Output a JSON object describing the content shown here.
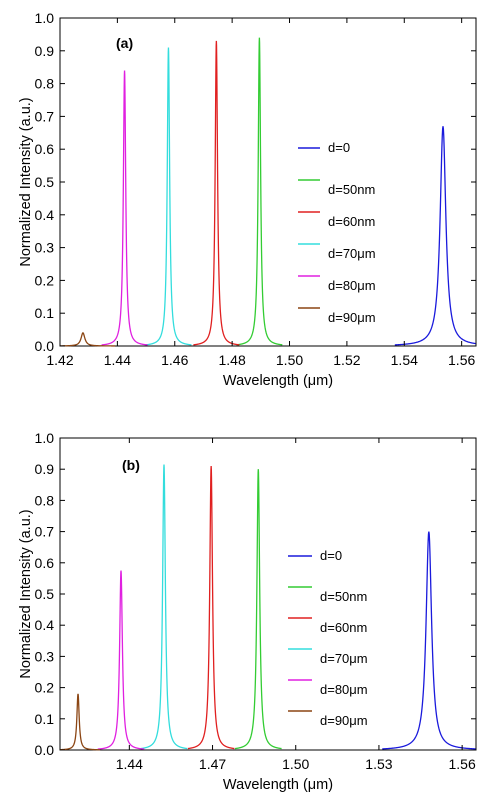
{
  "chart_data": [
    {
      "type": "line",
      "panel_label": "(a)",
      "xlabel": "Wavelength (μm)",
      "ylabel": "Normalized Intensity (a.u.)",
      "xlim": [
        1.42,
        1.565
      ],
      "ylim": [
        0.0,
        1.0
      ],
      "x_ticks": [
        1.42,
        1.44,
        1.46,
        1.48,
        1.5,
        1.52,
        1.54,
        1.56
      ],
      "x_tick_labels": [
        "1.42",
        "1.44",
        "1.46",
        "1.48",
        "1.50",
        "1.52",
        "1.54",
        "1.56"
      ],
      "y_ticks": [
        0.0,
        0.1,
        0.2,
        0.3,
        0.4,
        0.5,
        0.6,
        0.7,
        0.8,
        0.9,
        1.0
      ],
      "y_tick_labels": [
        "0.0",
        "0.1",
        "0.2",
        "0.3",
        "0.4",
        "0.5",
        "0.6",
        "0.7",
        "0.8",
        "0.9",
        "1.0"
      ],
      "grid": false,
      "legend_position": "right-middle",
      "series": [
        {
          "name": "d=0",
          "color": "#1a1adc",
          "center": 1.5535,
          "peak": 0.67,
          "width": 0.0012
        },
        {
          "name": "d=50nm",
          "color": "#33cc33",
          "center": 1.4895,
          "peak": 0.94,
          "width": 0.0005
        },
        {
          "name": "d=60nm",
          "color": "#e02020",
          "center": 1.4745,
          "peak": 0.93,
          "width": 0.0005
        },
        {
          "name": "d=70μm",
          "color": "#33dddd",
          "center": 1.4578,
          "peak": 0.91,
          "width": 0.0005
        },
        {
          "name": "d=80μm",
          "color": "#e020e0",
          "center": 1.4425,
          "peak": 0.84,
          "width": 0.0005
        },
        {
          "name": "d=90μm",
          "color": "#8b4513",
          "center": 1.428,
          "peak": 0.04,
          "width": 0.0008
        }
      ]
    },
    {
      "type": "line",
      "panel_label": "(b)",
      "xlabel": "Wavelength (μm)",
      "ylabel": "Normalized Intensity (a.u.)",
      "xlim": [
        1.415,
        1.565
      ],
      "ylim": [
        0.0,
        1.0
      ],
      "x_ticks": [
        1.44,
        1.47,
        1.5,
        1.53,
        1.56
      ],
      "x_tick_labels": [
        "1.44",
        "1.47",
        "1.50",
        "1.53",
        "1.56"
      ],
      "y_ticks": [
        0.0,
        0.1,
        0.2,
        0.3,
        0.4,
        0.5,
        0.6,
        0.7,
        0.8,
        0.9,
        1.0
      ],
      "y_tick_labels": [
        "0.0",
        "0.1",
        "0.2",
        "0.3",
        "0.4",
        "0.5",
        "0.6",
        "0.7",
        "0.8",
        "0.9",
        "1.0"
      ],
      "grid": false,
      "legend_position": "right-middle",
      "series": [
        {
          "name": "d=0",
          "color": "#1a1adc",
          "center": 1.548,
          "peak": 0.7,
          "width": 0.0012
        },
        {
          "name": "d=50nm",
          "color": "#33cc33",
          "center": 1.4865,
          "peak": 0.9,
          "width": 0.0006
        },
        {
          "name": "d=60nm",
          "color": "#e02020",
          "center": 1.4695,
          "peak": 0.91,
          "width": 0.0006
        },
        {
          "name": "d=70μm",
          "color": "#33dddd",
          "center": 1.4525,
          "peak": 0.915,
          "width": 0.0006
        },
        {
          "name": "d=80μm",
          "color": "#e020e0",
          "center": 1.437,
          "peak": 0.575,
          "width": 0.0006
        },
        {
          "name": "d=90μm",
          "color": "#8b4513",
          "center": 1.4215,
          "peak": 0.18,
          "width": 0.0005
        }
      ]
    }
  ]
}
